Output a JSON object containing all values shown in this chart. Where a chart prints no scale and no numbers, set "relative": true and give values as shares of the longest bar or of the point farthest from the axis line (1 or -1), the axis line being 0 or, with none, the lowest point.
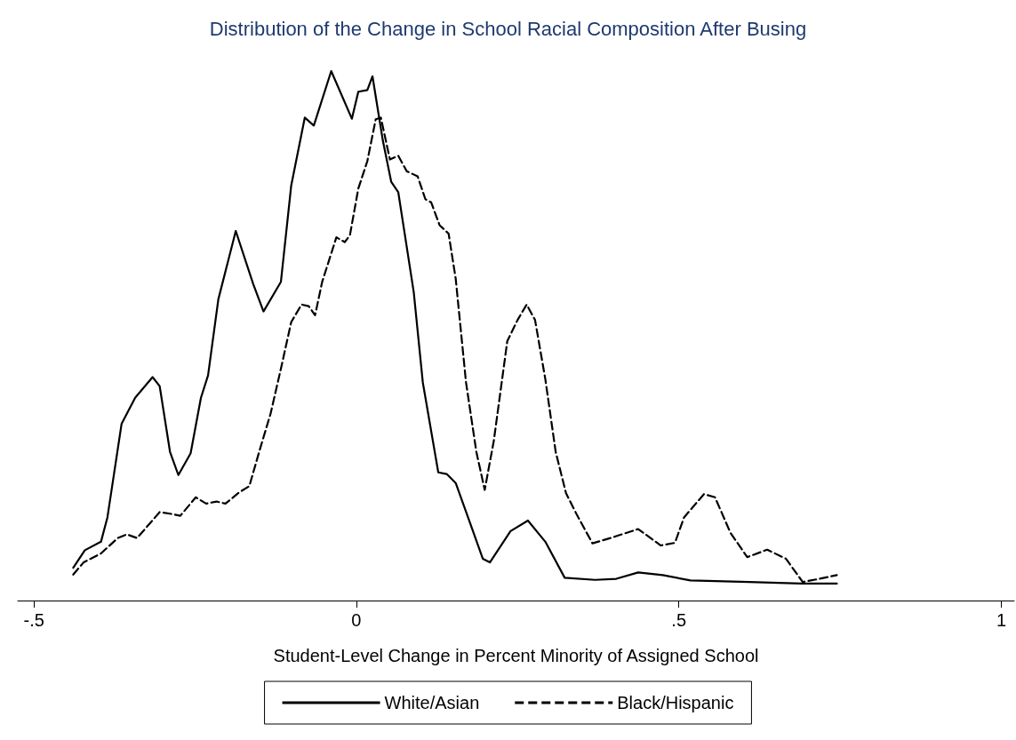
{
  "chart_data": {
    "type": "line",
    "title": "Distribution of the Change in School Racial Composition After Busing",
    "xlabel": "Student-Level Change in Percent Minority of Assigned School",
    "relative": true,
    "xlim": [
      -0.525,
      1.02
    ],
    "xticks": [
      {
        "value": -0.5,
        "label": "-.5"
      },
      0,
      {
        "value": 0.5,
        "label": ".5"
      },
      1
    ],
    "grid": false,
    "legend": "bottom",
    "marker": "none",
    "series": [
      {
        "name": "White/Asian",
        "color": "#000000",
        "line_style": "solid",
        "x": [
          -0.439,
          -0.421,
          -0.396,
          -0.386,
          -0.364,
          -0.343,
          -0.316,
          -0.305,
          -0.289,
          -0.276,
          -0.257,
          -0.241,
          -0.23,
          -0.214,
          -0.187,
          -0.16,
          -0.144,
          -0.117,
          -0.101,
          -0.08,
          -0.066,
          -0.039,
          -0.007,
          0.003,
          0.017,
          0.025,
          0.041,
          0.054,
          0.065,
          0.089,
          0.103,
          0.127,
          0.14,
          0.154,
          0.175,
          0.196,
          0.207,
          0.239,
          0.266,
          0.293,
          0.323,
          0.37,
          0.403,
          0.437,
          0.475,
          0.518,
          0.609,
          0.69,
          0.745
        ],
        "values": [
          0.062,
          0.095,
          0.111,
          0.157,
          0.334,
          0.383,
          0.422,
          0.405,
          0.281,
          0.237,
          0.278,
          0.383,
          0.425,
          0.569,
          0.698,
          0.598,
          0.546,
          0.602,
          0.784,
          0.912,
          0.897,
          1.0,
          0.91,
          0.961,
          0.964,
          0.99,
          0.869,
          0.791,
          0.771,
          0.582,
          0.412,
          0.242,
          0.239,
          0.222,
          0.151,
          0.079,
          0.072,
          0.131,
          0.151,
          0.111,
          0.043,
          0.039,
          0.041,
          0.053,
          0.048,
          0.038,
          0.035,
          0.032,
          0.032
        ]
      },
      {
        "name": "Black/Hispanic",
        "color": "#000000",
        "line_style": "dashed",
        "x": [
          -0.439,
          -0.423,
          -0.396,
          -0.37,
          -0.356,
          -0.34,
          -0.305,
          -0.289,
          -0.273,
          -0.249,
          -0.233,
          -0.217,
          -0.203,
          -0.182,
          -0.166,
          -0.149,
          -0.133,
          -0.117,
          -0.101,
          -0.085,
          -0.074,
          -0.064,
          -0.053,
          -0.031,
          -0.018,
          -0.01,
          0.003,
          0.017,
          0.03,
          0.038,
          0.052,
          0.065,
          0.078,
          0.095,
          0.107,
          0.116,
          0.129,
          0.143,
          0.154,
          0.17,
          0.186,
          0.199,
          0.213,
          0.234,
          0.25,
          0.264,
          0.277,
          0.293,
          0.309,
          0.325,
          0.341,
          0.366,
          0.394,
          0.437,
          0.472,
          0.494,
          0.508,
          0.539,
          0.556,
          0.58,
          0.606,
          0.637,
          0.666,
          0.692,
          0.718,
          0.745
        ],
        "values": [
          0.049,
          0.072,
          0.089,
          0.118,
          0.125,
          0.118,
          0.167,
          0.164,
          0.16,
          0.195,
          0.183,
          0.187,
          0.183,
          0.204,
          0.216,
          0.288,
          0.353,
          0.438,
          0.526,
          0.559,
          0.556,
          0.539,
          0.602,
          0.686,
          0.677,
          0.69,
          0.778,
          0.83,
          0.909,
          0.912,
          0.833,
          0.84,
          0.811,
          0.801,
          0.758,
          0.752,
          0.709,
          0.693,
          0.608,
          0.412,
          0.281,
          0.209,
          0.301,
          0.49,
          0.53,
          0.559,
          0.53,
          0.418,
          0.281,
          0.203,
          0.164,
          0.108,
          0.118,
          0.135,
          0.104,
          0.109,
          0.157,
          0.201,
          0.195,
          0.128,
          0.082,
          0.096,
          0.079,
          0.035,
          0.041,
          0.048
        ]
      }
    ]
  }
}
